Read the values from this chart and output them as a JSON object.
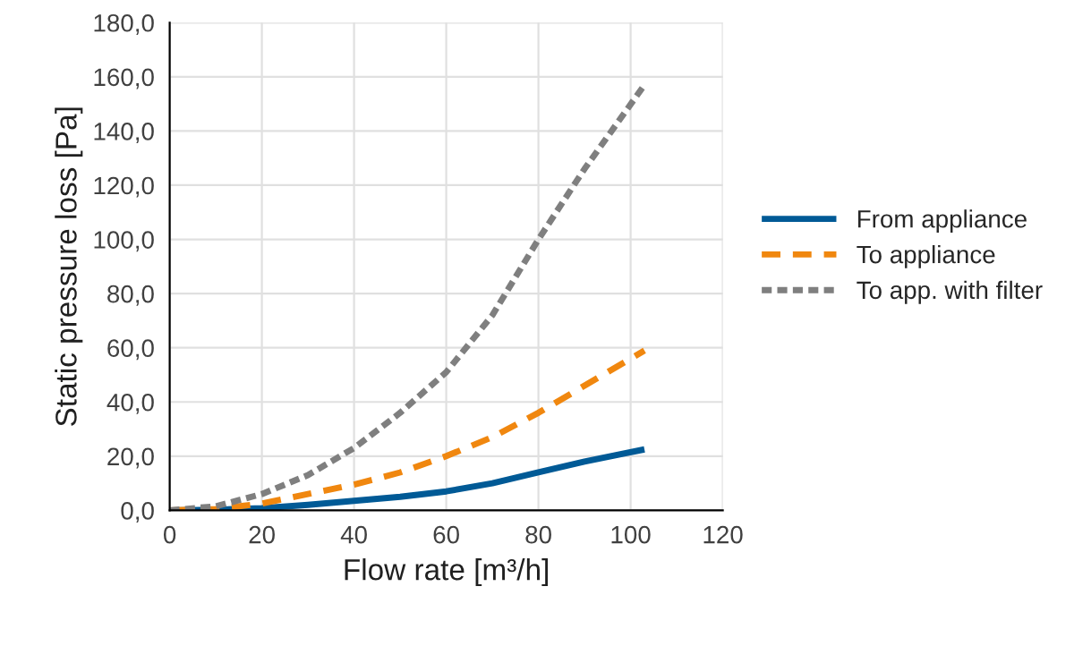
{
  "chart_data": {
    "type": "line",
    "xlabel": "Flow rate [m³/h]",
    "ylabel": "Static pressure loss [Pa]",
    "xlim": [
      0,
      120
    ],
    "xticks": [
      0,
      20,
      40,
      60,
      80,
      100,
      120
    ],
    "ylim": [
      0,
      180
    ],
    "yticks": [
      {
        "value": 0,
        "label": "0,0"
      },
      {
        "value": 20,
        "label": "20,0"
      },
      {
        "value": 40,
        "label": "40,0"
      },
      {
        "value": 60,
        "label": "60,0"
      },
      {
        "value": 80,
        "label": "80,0"
      },
      {
        "value": 100,
        "label": "100,0"
      },
      {
        "value": 120,
        "label": "120,0"
      },
      {
        "value": 140,
        "label": "140,0"
      },
      {
        "value": 160,
        "label": "160,0"
      },
      {
        "value": 180,
        "label": "180,0"
      }
    ],
    "grid": true,
    "legend": "right",
    "marker": "none",
    "x": [
      0,
      10,
      20,
      30,
      40,
      50,
      60,
      70,
      80,
      90,
      103
    ],
    "series": [
      {
        "name": "From appliance",
        "color": "#005a96",
        "line_style": "solid",
        "values": [
          0,
          0.2,
          0.8,
          2,
          3.5,
          5,
          7,
          10,
          14,
          18,
          22.5
        ]
      },
      {
        "name": "To appliance",
        "color": "#f0870f",
        "line_style": "dashed",
        "values": [
          0,
          0.5,
          2.5,
          6,
          9.5,
          14,
          20,
          27,
          36,
          46,
          59
        ]
      },
      {
        "name": "To app. with filter",
        "color": "#7f7f7f",
        "line_style": "dotted",
        "values": [
          0,
          1.5,
          6,
          13,
          23,
          36,
          51,
          72,
          100,
          126,
          157
        ]
      }
    ]
  }
}
